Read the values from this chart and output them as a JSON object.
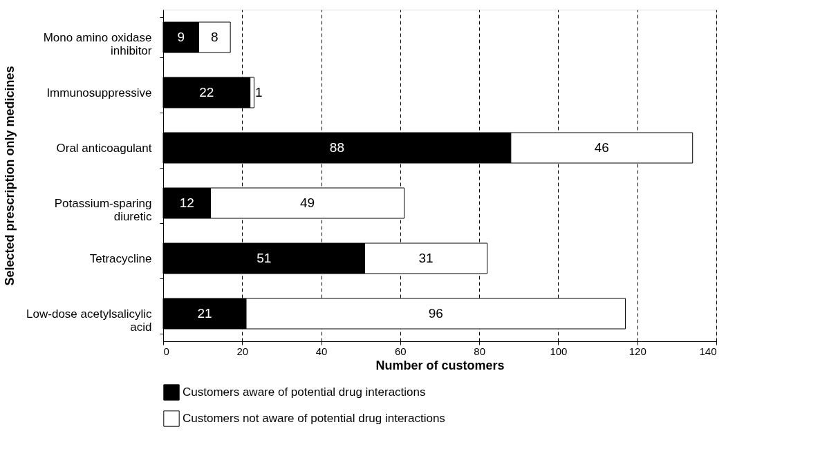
{
  "chart_data": {
    "type": "bar",
    "orientation": "horizontal",
    "stacked": true,
    "xlabel": "Number of customers",
    "ylabel": "Selected prescription only medicines",
    "categories": [
      "Mono amino oxidase inhibitor",
      "Immunosuppressive",
      "Oral anticoagulant",
      "Potassium-sparing diuretic",
      "Tetracycline",
      "Low-dose acetylsalicylic acid"
    ],
    "series": [
      {
        "name": "Customers aware of potential drug interactions",
        "color": "#000000",
        "values": [
          9,
          22,
          88,
          12,
          51,
          21
        ]
      },
      {
        "name": "Customers not aware of potential drug interactions",
        "color": "#ffffff",
        "values": [
          8,
          1,
          46,
          49,
          31,
          96
        ]
      }
    ],
    "xlim": [
      0,
      140
    ],
    "xticks": [
      0,
      20,
      40,
      60,
      80,
      100,
      120,
      140
    ],
    "grid": "x",
    "legend": "bottom",
    "data_labels": true
  }
}
